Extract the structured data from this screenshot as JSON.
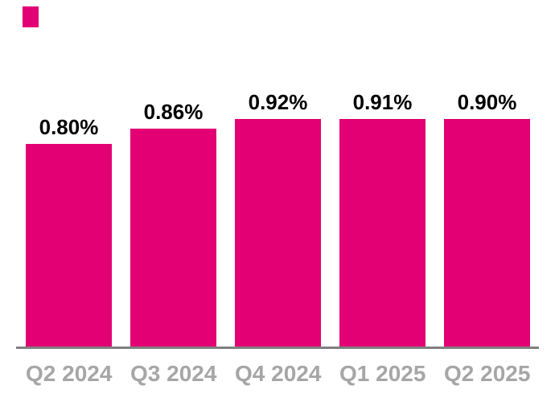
{
  "chart_data": {
    "type": "bar",
    "title": "",
    "categories": [
      "Q2 2024",
      "Q3 2024",
      "Q4 2024",
      "Q1 2025",
      "Q2 2025"
    ],
    "values": [
      0.8,
      0.86,
      0.92,
      0.91,
      0.9
    ],
    "value_labels": [
      "0.80%",
      "0.86%",
      "0.92%",
      "0.91%",
      "0.90%"
    ],
    "unit": "%",
    "baseline": 0,
    "grid": false,
    "legend": "none",
    "colors": {
      "bar": "#E20074",
      "value_label": "#000000",
      "axis_label": "#A6A6A6",
      "axis_line": "#808080",
      "background": "#FFFFFF",
      "accent_square": "#E20074"
    }
  }
}
